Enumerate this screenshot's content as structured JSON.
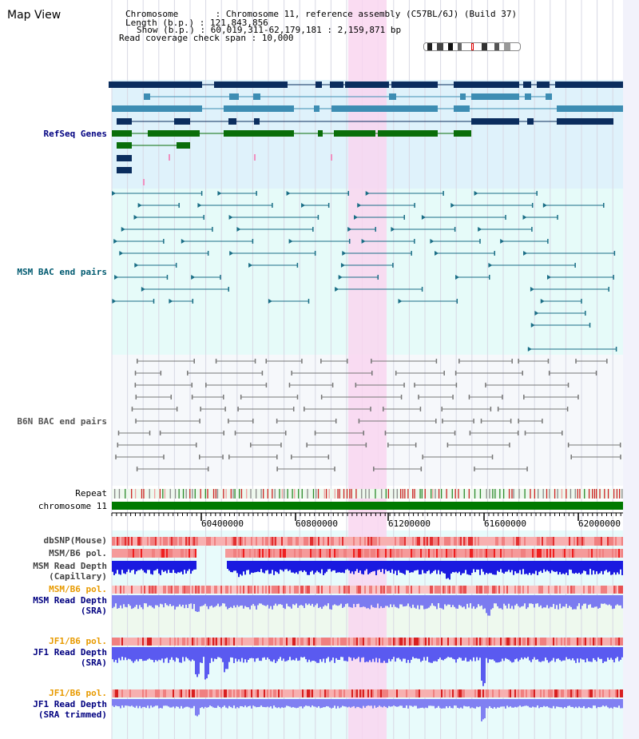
{
  "page_title": "Map View",
  "info": {
    "chromosome": "Chromosome       : Chromosome 11, reference assembly (C57BL/6J) (Build 37)",
    "length": "Length (b.p.) : 121,843,856",
    "show": "Show (b.p.) : 60,019,311-62,179,181 : 2,159,871 bp",
    "coverage": "Read coverage check span : 10,000"
  },
  "tracks": {
    "refseq": "RefSeq Genes",
    "msm_bac": "MSM BAC end pairs",
    "b6n_bac": "B6N BAC end pairs",
    "repeat": "Repeat",
    "chromosome": "chromosome 11",
    "dbsnp": "dbSNP(Mouse)",
    "msm_pol": "MSM/B6 pol.",
    "msm_depth_cap": "MSM Read Depth",
    "msm_depth_cap_sub": "(Capillary)",
    "msm_pol2": "MSM/B6 pol.",
    "msm_depth_sra": "MSM Read Depth",
    "msm_depth_sra_sub": "(SRA)",
    "jf1_pol": "JF1/B6 pol.",
    "jf1_depth": "JF1 Read Depth",
    "jf1_depth_sub": "(SRA)",
    "jf1_pol2": "JF1/B6 pol.",
    "jf1_depth_trim": "JF1 Read Depth",
    "jf1_depth_trim_sub": "(SRA trimmed)"
  },
  "axis_ticks": [
    "60400000",
    "60800000",
    "61200000",
    "61600000",
    "62000000"
  ],
  "colors": {
    "refseq_bg": "#dff2fb",
    "msm_bg": "#e6fbf9",
    "b6n_bg": "#f6f8fb",
    "highlight": "#f9d6f0",
    "gene_dark": "#0b2d5e",
    "gene_mid": "#3d8db3",
    "gene_green": "#0a6e0a",
    "chromosome": "#007a00",
    "label_navy": "#000080",
    "label_teal": "#005a70",
    "label_orange": "#e89a00",
    "label_gray": "#444444"
  }
}
